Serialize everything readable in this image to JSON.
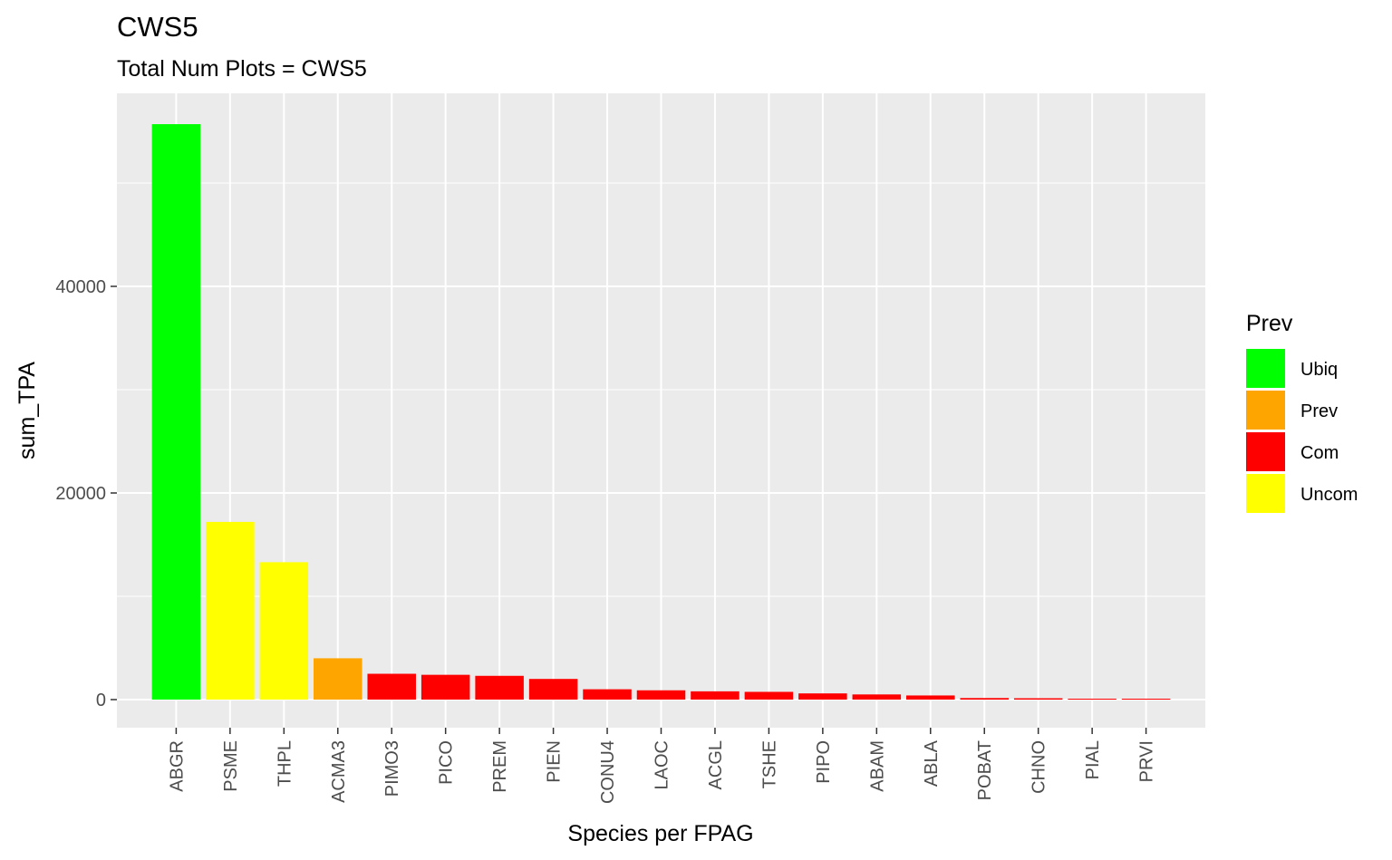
{
  "chart_data": {
    "type": "bar",
    "title": "CWS5",
    "subtitle": "Total Num Plots = CWS5",
    "xlabel": "Species per FPAG",
    "ylabel": "sum_TPA",
    "ylim": [
      -2500,
      58000
    ],
    "yticks": [
      0,
      20000,
      40000
    ],
    "ytick_labels": [
      "0",
      "20000",
      "40000"
    ],
    "grid": true,
    "categories": [
      "ABGR",
      "PSME",
      "THPL",
      "ACMA3",
      "PIMO3",
      "PICO",
      "PREM",
      "PIEN",
      "CONU4",
      "LAOC",
      "ACGL",
      "TSHE",
      "PIPO",
      "ABAM",
      "ABLA",
      "POBAT",
      "CHNO",
      "PIAL",
      "PRVI"
    ],
    "values": [
      55700,
      17200,
      13300,
      4000,
      2500,
      2400,
      2300,
      2000,
      1000,
      900,
      800,
      750,
      600,
      500,
      400,
      150,
      130,
      80,
      60
    ],
    "groups": [
      "Ubiq",
      "Uncom",
      "Uncom",
      "Prev",
      "Com",
      "Com",
      "Com",
      "Com",
      "Com",
      "Com",
      "Com",
      "Com",
      "Com",
      "Com",
      "Com",
      "Com",
      "Com",
      "Com",
      "Com"
    ],
    "legend": {
      "title": "Prev",
      "position": "right",
      "entries": [
        {
          "label": "Ubiq",
          "color": "#00ff00"
        },
        {
          "label": "Prev",
          "color": "#ffa500"
        },
        {
          "label": "Com",
          "color": "#ff0000"
        },
        {
          "label": "Uncom",
          "color": "#ffff00"
        }
      ]
    },
    "panel_background": "#ebebeb",
    "grid_color": "#ffffff"
  }
}
